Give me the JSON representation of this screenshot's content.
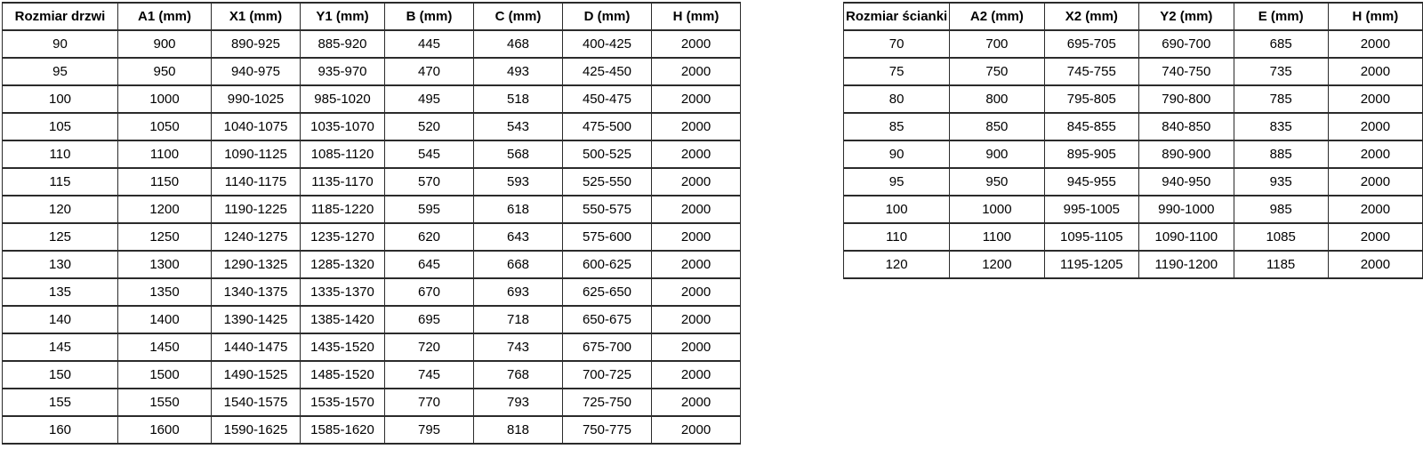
{
  "page": {
    "background_color": "#ffffff",
    "text_color": "#000000",
    "border_color": "#2b2b2b"
  },
  "door_table": {
    "headers": [
      "Rozmiar drzwi",
      "A1 (mm)",
      "X1 (mm)",
      "Y1 (mm)",
      "B (mm)",
      "C (mm)",
      "D (mm)",
      "H (mm)"
    ],
    "rows": [
      [
        "90",
        "900",
        "890-925",
        "885-920",
        "445",
        "468",
        "400-425",
        "2000"
      ],
      [
        "95",
        "950",
        "940-975",
        "935-970",
        "470",
        "493",
        "425-450",
        "2000"
      ],
      [
        "100",
        "1000",
        "990-1025",
        "985-1020",
        "495",
        "518",
        "450-475",
        "2000"
      ],
      [
        "105",
        "1050",
        "1040-1075",
        "1035-1070",
        "520",
        "543",
        "475-500",
        "2000"
      ],
      [
        "110",
        "1100",
        "1090-1125",
        "1085-1120",
        "545",
        "568",
        "500-525",
        "2000"
      ],
      [
        "115",
        "1150",
        "1140-1175",
        "1135-1170",
        "570",
        "593",
        "525-550",
        "2000"
      ],
      [
        "120",
        "1200",
        "1190-1225",
        "1185-1220",
        "595",
        "618",
        "550-575",
        "2000"
      ],
      [
        "125",
        "1250",
        "1240-1275",
        "1235-1270",
        "620",
        "643",
        "575-600",
        "2000"
      ],
      [
        "130",
        "1300",
        "1290-1325",
        "1285-1320",
        "645",
        "668",
        "600-625",
        "2000"
      ],
      [
        "135",
        "1350",
        "1340-1375",
        "1335-1370",
        "670",
        "693",
        "625-650",
        "2000"
      ],
      [
        "140",
        "1400",
        "1390-1425",
        "1385-1420",
        "695",
        "718",
        "650-675",
        "2000"
      ],
      [
        "145",
        "1450",
        "1440-1475",
        "1435-1520",
        "720",
        "743",
        "675-700",
        "2000"
      ],
      [
        "150",
        "1500",
        "1490-1525",
        "1485-1520",
        "745",
        "768",
        "700-725",
        "2000"
      ],
      [
        "155",
        "1550",
        "1540-1575",
        "1535-1570",
        "770",
        "793",
        "725-750",
        "2000"
      ],
      [
        "160",
        "1600",
        "1590-1625",
        "1585-1620",
        "795",
        "818",
        "750-775",
        "2000"
      ]
    ]
  },
  "wall_table": {
    "headers": [
      "Rozmiar ścianki",
      "A2 (mm)",
      "X2 (mm)",
      "Y2 (mm)",
      "E (mm)",
      "H (mm)"
    ],
    "rows": [
      [
        "70",
        "700",
        "695-705",
        "690-700",
        "685",
        "2000"
      ],
      [
        "75",
        "750",
        "745-755",
        "740-750",
        "735",
        "2000"
      ],
      [
        "80",
        "800",
        "795-805",
        "790-800",
        "785",
        "2000"
      ],
      [
        "85",
        "850",
        "845-855",
        "840-850",
        "835",
        "2000"
      ],
      [
        "90",
        "900",
        "895-905",
        "890-900",
        "885",
        "2000"
      ],
      [
        "95",
        "950",
        "945-955",
        "940-950",
        "935",
        "2000"
      ],
      [
        "100",
        "1000",
        "995-1005",
        "990-1000",
        "985",
        "2000"
      ],
      [
        "110",
        "1100",
        "1095-1105",
        "1090-1100",
        "1085",
        "2000"
      ],
      [
        "120",
        "1200",
        "1195-1205",
        "1190-1200",
        "1185",
        "2000"
      ]
    ]
  }
}
